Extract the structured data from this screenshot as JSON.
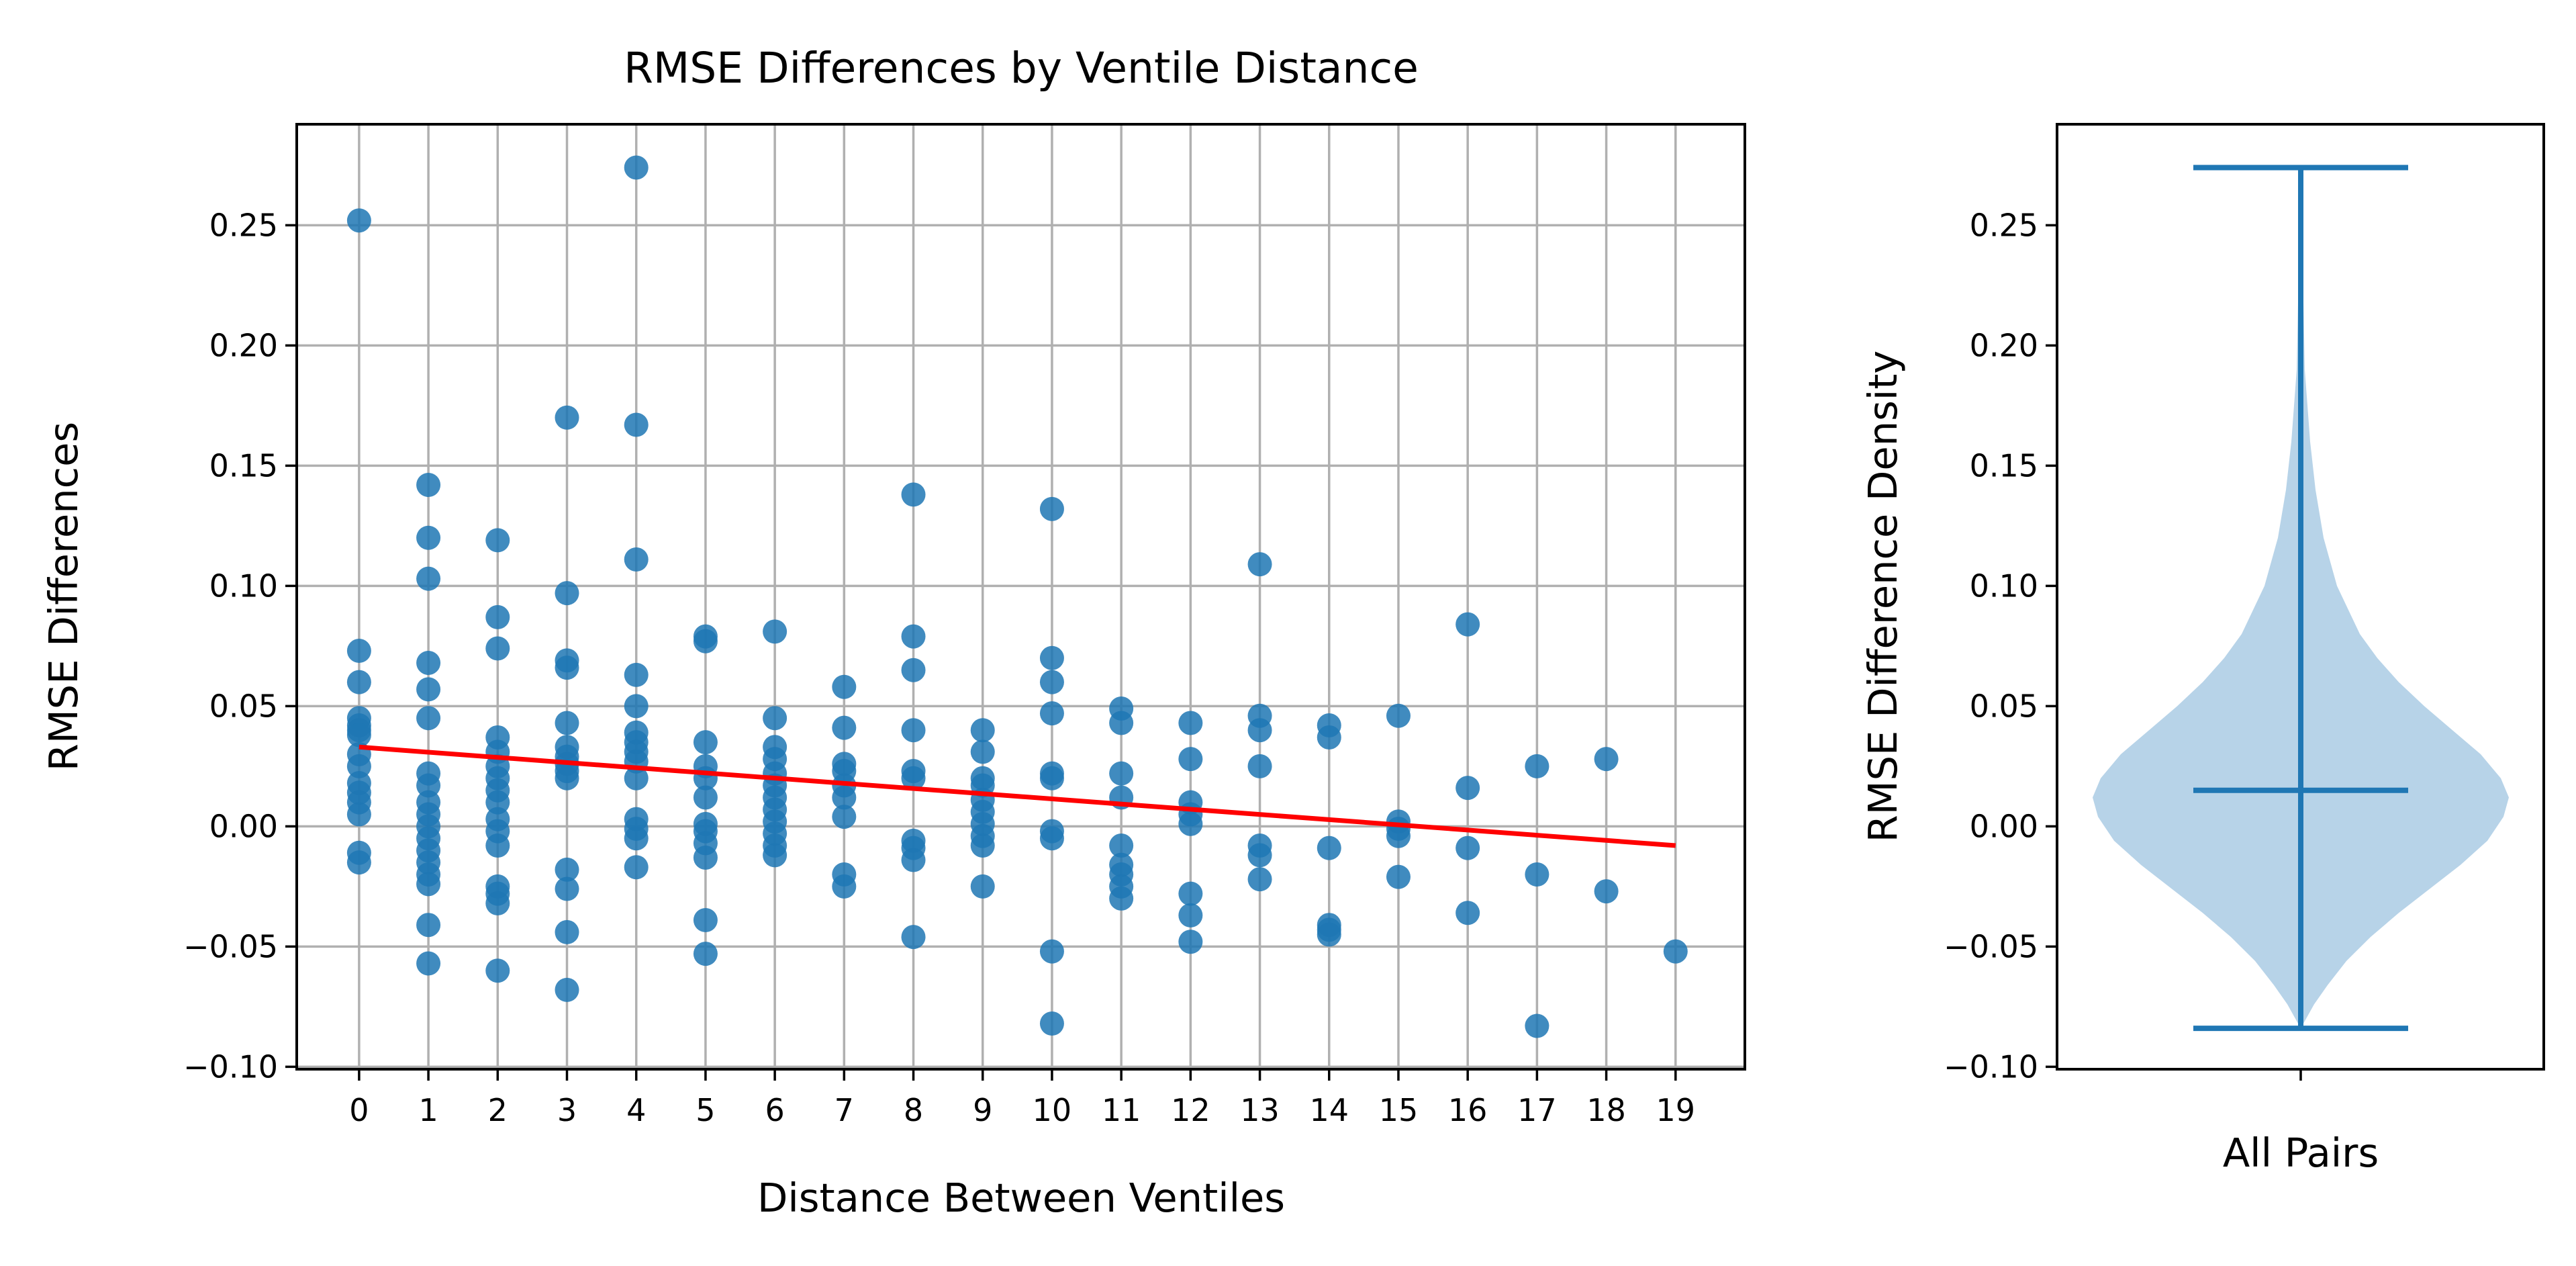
{
  "chart_data": [
    {
      "type": "scatter",
      "title": "RMSE Differences by Ventile Distance",
      "xlabel": "Distance Between Ventiles",
      "ylabel": "RMSE Differences",
      "xticks": [
        "0",
        "1",
        "2",
        "3",
        "4",
        "5",
        "6",
        "7",
        "8",
        "9",
        "10",
        "11",
        "12",
        "13",
        "14",
        "15",
        "16",
        "17",
        "18",
        "19"
      ],
      "yticks": [
        "0.25",
        "0.20",
        "0.15",
        "0.10",
        "0.05",
        "0.00",
        "−0.05",
        "−0.10"
      ],
      "xlim": [
        -0.9,
        20.0
      ],
      "ylim": [
        -0.101,
        0.292
      ],
      "grid": true,
      "point_color": "#1f77b4",
      "trend_color": "#ff0000",
      "trend_line": {
        "x": [
          0,
          19
        ],
        "y": [
          0.033,
          -0.008
        ]
      },
      "series": [
        {
          "points": [
            [
              0,
              0.252
            ],
            [
              0,
              0.073
            ],
            [
              0,
              0.06
            ],
            [
              0,
              0.045
            ],
            [
              0,
              0.042
            ],
            [
              0,
              0.04
            ],
            [
              0,
              0.038
            ],
            [
              0,
              0.03
            ],
            [
              0,
              0.025
            ],
            [
              0,
              0.018
            ],
            [
              0,
              0.014
            ],
            [
              0,
              0.01
            ],
            [
              0,
              0.005
            ],
            [
              0,
              -0.011
            ],
            [
              0,
              -0.015
            ],
            [
              1,
              0.142
            ],
            [
              1,
              0.12
            ],
            [
              1,
              0.103
            ],
            [
              1,
              0.068
            ],
            [
              1,
              0.057
            ],
            [
              1,
              0.045
            ],
            [
              1,
              0.022
            ],
            [
              1,
              0.017
            ],
            [
              1,
              0.01
            ],
            [
              1,
              0.005
            ],
            [
              1,
              0.0
            ],
            [
              1,
              -0.005
            ],
            [
              1,
              -0.01
            ],
            [
              1,
              -0.015
            ],
            [
              1,
              -0.02
            ],
            [
              1,
              -0.024
            ],
            [
              1,
              -0.041
            ],
            [
              1,
              -0.057
            ],
            [
              2,
              0.119
            ],
            [
              2,
              0.087
            ],
            [
              2,
              0.074
            ],
            [
              2,
              0.037
            ],
            [
              2,
              0.031
            ],
            [
              2,
              0.025
            ],
            [
              2,
              0.02
            ],
            [
              2,
              0.015
            ],
            [
              2,
              0.01
            ],
            [
              2,
              0.003
            ],
            [
              2,
              -0.002
            ],
            [
              2,
              -0.008
            ],
            [
              2,
              -0.025
            ],
            [
              2,
              -0.028
            ],
            [
              2,
              -0.032
            ],
            [
              2,
              -0.06
            ],
            [
              3,
              0.17
            ],
            [
              3,
              0.097
            ],
            [
              3,
              0.069
            ],
            [
              3,
              0.066
            ],
            [
              3,
              0.043
            ],
            [
              3,
              0.033
            ],
            [
              3,
              0.029
            ],
            [
              3,
              0.026
            ],
            [
              3,
              0.023
            ],
            [
              3,
              0.02
            ],
            [
              3,
              -0.018
            ],
            [
              3,
              -0.026
            ],
            [
              3,
              -0.044
            ],
            [
              3,
              -0.068
            ],
            [
              4,
              0.274
            ],
            [
              4,
              0.167
            ],
            [
              4,
              0.111
            ],
            [
              4,
              0.063
            ],
            [
              4,
              0.05
            ],
            [
              4,
              0.039
            ],
            [
              4,
              0.035
            ],
            [
              4,
              0.031
            ],
            [
              4,
              0.027
            ],
            [
              4,
              0.02
            ],
            [
              4,
              0.003
            ],
            [
              4,
              -0.001
            ],
            [
              4,
              -0.005
            ],
            [
              4,
              -0.017
            ],
            [
              5,
              0.079
            ],
            [
              5,
              0.077
            ],
            [
              5,
              0.035
            ],
            [
              5,
              0.025
            ],
            [
              5,
              0.02
            ],
            [
              5,
              0.012
            ],
            [
              5,
              0.001
            ],
            [
              5,
              -0.002
            ],
            [
              5,
              -0.007
            ],
            [
              5,
              -0.013
            ],
            [
              5,
              -0.039
            ],
            [
              5,
              -0.053
            ],
            [
              6,
              0.081
            ],
            [
              6,
              0.045
            ],
            [
              6,
              0.033
            ],
            [
              6,
              0.028
            ],
            [
              6,
              0.022
            ],
            [
              6,
              0.017
            ],
            [
              6,
              0.012
            ],
            [
              6,
              0.007
            ],
            [
              6,
              0.002
            ],
            [
              6,
              -0.003
            ],
            [
              6,
              -0.008
            ],
            [
              6,
              -0.012
            ],
            [
              7,
              0.058
            ],
            [
              7,
              0.041
            ],
            [
              7,
              0.026
            ],
            [
              7,
              0.023
            ],
            [
              7,
              0.017
            ],
            [
              7,
              0.012
            ],
            [
              7,
              0.004
            ],
            [
              7,
              -0.02
            ],
            [
              7,
              -0.025
            ],
            [
              8,
              0.138
            ],
            [
              8,
              0.079
            ],
            [
              8,
              0.065
            ],
            [
              8,
              0.04
            ],
            [
              8,
              0.023
            ],
            [
              8,
              0.02
            ],
            [
              8,
              -0.006
            ],
            [
              8,
              -0.009
            ],
            [
              8,
              -0.014
            ],
            [
              8,
              -0.046
            ],
            [
              9,
              0.04
            ],
            [
              9,
              0.031
            ],
            [
              9,
              0.02
            ],
            [
              9,
              0.017
            ],
            [
              9,
              0.011
            ],
            [
              9,
              0.006
            ],
            [
              9,
              0.001
            ],
            [
              9,
              -0.004
            ],
            [
              9,
              -0.008
            ],
            [
              9,
              -0.025
            ],
            [
              10,
              0.132
            ],
            [
              10,
              0.07
            ],
            [
              10,
              0.06
            ],
            [
              10,
              0.047
            ],
            [
              10,
              0.022
            ],
            [
              10,
              0.02
            ],
            [
              10,
              -0.002
            ],
            [
              10,
              -0.005
            ],
            [
              10,
              -0.052
            ],
            [
              10,
              -0.082
            ],
            [
              11,
              0.049
            ],
            [
              11,
              0.043
            ],
            [
              11,
              0.022
            ],
            [
              11,
              0.012
            ],
            [
              11,
              -0.008
            ],
            [
              11,
              -0.016
            ],
            [
              11,
              -0.02
            ],
            [
              11,
              -0.025
            ],
            [
              11,
              -0.03
            ],
            [
              12,
              0.043
            ],
            [
              12,
              0.028
            ],
            [
              12,
              0.01
            ],
            [
              12,
              0.005
            ],
            [
              12,
              0.001
            ],
            [
              12,
              -0.028
            ],
            [
              12,
              -0.037
            ],
            [
              12,
              -0.048
            ],
            [
              13,
              0.109
            ],
            [
              13,
              0.046
            ],
            [
              13,
              0.04
            ],
            [
              13,
              0.025
            ],
            [
              13,
              -0.008
            ],
            [
              13,
              -0.012
            ],
            [
              13,
              -0.022
            ],
            [
              14,
              0.042
            ],
            [
              14,
              0.037
            ],
            [
              14,
              -0.009
            ],
            [
              14,
              -0.041
            ],
            [
              14,
              -0.043
            ],
            [
              14,
              -0.045
            ],
            [
              15,
              0.046
            ],
            [
              15,
              0.002
            ],
            [
              15,
              -0.001
            ],
            [
              15,
              -0.004
            ],
            [
              15,
              -0.021
            ],
            [
              16,
              0.084
            ],
            [
              16,
              0.016
            ],
            [
              16,
              -0.009
            ],
            [
              16,
              -0.036
            ],
            [
              17,
              0.025
            ],
            [
              17,
              -0.02
            ],
            [
              17,
              -0.083
            ],
            [
              18,
              0.028
            ],
            [
              18,
              -0.027
            ],
            [
              19,
              -0.052
            ]
          ]
        }
      ]
    },
    {
      "type": "violin",
      "title": "",
      "xlabel": "All Pairs",
      "ylabel": "RMSE Difference Density",
      "yticks": [
        "0.25",
        "0.20",
        "0.15",
        "0.10",
        "0.05",
        "0.00",
        "−0.05",
        "−0.10"
      ],
      "ylim": [
        -0.101,
        0.292
      ],
      "max": 0.274,
      "median": 0.015,
      "min": -0.084,
      "body_color": "#b7d3e8",
      "line_color": "#1f77b4"
    }
  ]
}
